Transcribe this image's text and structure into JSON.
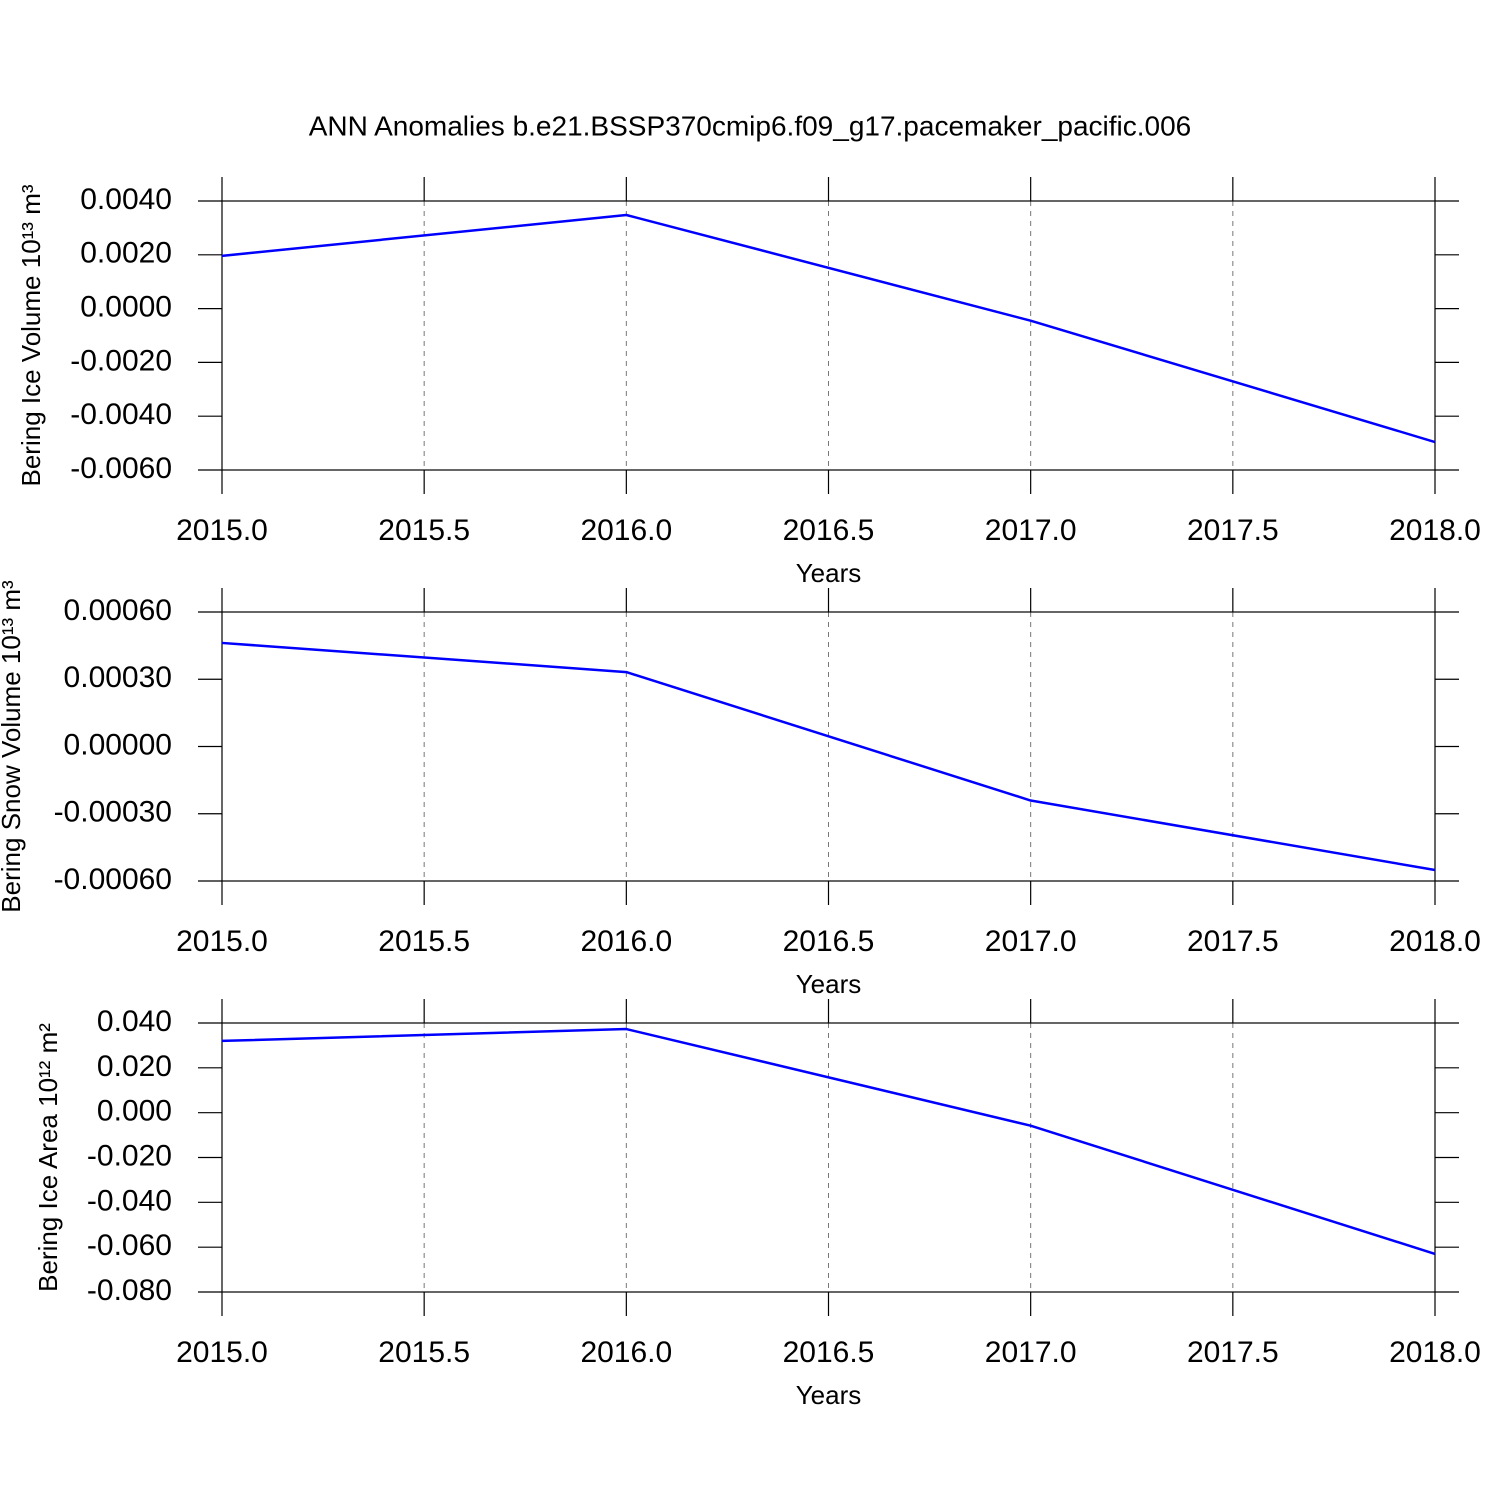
{
  "chart_data": [
    {
      "type": "line",
      "title": "ANN Anomalies b.e21.BSSP370cmip6.f09_g17.pacemaker_pacific.006",
      "x": [
        2015,
        2016,
        2017,
        2018
      ],
      "values": [
        0.00196,
        0.00348,
        -0.00045,
        -0.00496
      ],
      "color": "#0000ff",
      "xlabel": "Years",
      "ylabel": "Bering Ice Volume 10¹³ m³",
      "xlim": [
        2015,
        2018
      ],
      "xticks": [
        {
          "value": 2015,
          "label": "2015.0"
        },
        {
          "value": 2015.5,
          "label": "2015.5"
        },
        {
          "value": 2016,
          "label": "2016.0"
        },
        {
          "value": 2016.5,
          "label": "2016.5"
        },
        {
          "value": 2017,
          "label": "2017.0"
        },
        {
          "value": 2017.5,
          "label": "2017.5"
        },
        {
          "value": 2018,
          "label": "2018.0"
        }
      ],
      "ylim": [
        -0.006,
        0.004
      ],
      "yticks": [
        {
          "value": 0.004,
          "label": "0.0040"
        },
        {
          "value": 0.002,
          "label": "0.0020"
        },
        {
          "value": 0,
          "label": "0.0000"
        },
        {
          "value": -0.002,
          "label": "-0.0020"
        },
        {
          "value": -0.004,
          "label": "-0.0040"
        },
        {
          "value": -0.006,
          "label": "-0.0060"
        }
      ],
      "grid": true
    },
    {
      "type": "line",
      "x": [
        2015,
        2016,
        2017,
        2018
      ],
      "values": [
        0.000462,
        0.000332,
        -0.000241,
        -0.000551
      ],
      "color": "#0000ff",
      "xlabel": "Years",
      "ylabel": "Bering Snow Volume 10¹³ m³",
      "xlim": [
        2015,
        2018
      ],
      "xticks": [
        {
          "value": 2015,
          "label": "2015.0"
        },
        {
          "value": 2015.5,
          "label": "2015.5"
        },
        {
          "value": 2016,
          "label": "2016.0"
        },
        {
          "value": 2016.5,
          "label": "2016.5"
        },
        {
          "value": 2017,
          "label": "2017.0"
        },
        {
          "value": 2017.5,
          "label": "2017.5"
        },
        {
          "value": 2018,
          "label": "2018.0"
        }
      ],
      "ylim": [
        -0.0006,
        0.0006
      ],
      "yticks": [
        {
          "value": 0.0006,
          "label": "0.00060"
        },
        {
          "value": 0.0003,
          "label": "0.00030"
        },
        {
          "value": 0,
          "label": "0.00000"
        },
        {
          "value": -0.0003,
          "label": "-0.00030"
        },
        {
          "value": -0.0006,
          "label": "-0.00060"
        }
      ],
      "grid": true
    },
    {
      "type": "line",
      "x": [
        2015,
        2016,
        2017,
        2018
      ],
      "values": [
        0.032,
        0.0373,
        -0.0058,
        -0.063
      ],
      "color": "#0000ff",
      "xlabel": "Years",
      "ylabel": "Bering Ice Area 10¹² m²",
      "xlim": [
        2015,
        2018
      ],
      "xticks": [
        {
          "value": 2015,
          "label": "2015.0"
        },
        {
          "value": 2015.5,
          "label": "2015.5"
        },
        {
          "value": 2016,
          "label": "2016.0"
        },
        {
          "value": 2016.5,
          "label": "2016.5"
        },
        {
          "value": 2017,
          "label": "2017.0"
        },
        {
          "value": 2017.5,
          "label": "2017.5"
        },
        {
          "value": 2018,
          "label": "2018.0"
        }
      ],
      "ylim": [
        -0.08,
        0.04
      ],
      "yticks": [
        {
          "value": 0.04,
          "label": "0.040"
        },
        {
          "value": 0.02,
          "label": "0.020"
        },
        {
          "value": 0,
          "label": "0.000"
        },
        {
          "value": -0.02,
          "label": "-0.020"
        },
        {
          "value": -0.04,
          "label": "-0.040"
        },
        {
          "value": -0.06,
          "label": "-0.060"
        },
        {
          "value": -0.08,
          "label": "-0.080"
        }
      ],
      "grid": true
    }
  ]
}
